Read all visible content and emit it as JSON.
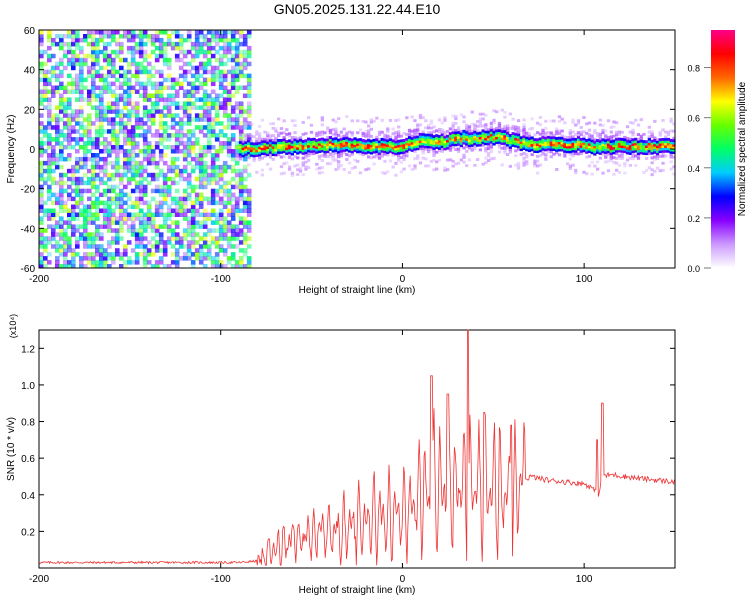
{
  "title": "GN05.2025.131.22.44.E10",
  "chart_data": [
    {
      "type": "heatmap",
      "name": "spectrogram",
      "xlabel": "Height of straight line (km)",
      "ylabel": "Frequency (Hz)",
      "xlim": [
        -200,
        150
      ],
      "ylim": [
        -60,
        60
      ],
      "xticks": [
        -200,
        -100,
        0,
        100
      ],
      "yticks": [
        -60,
        -40,
        -20,
        0,
        20,
        40,
        60
      ],
      "colorbar": {
        "label": "Normalized spectral amplitude",
        "range": [
          0,
          0.95
        ],
        "ticks": [
          0.0,
          0.2,
          0.4,
          0.6,
          0.8
        ],
        "colormap": [
          "#ffffff",
          "#cc99ff",
          "#8800ff",
          "#0000ff",
          "#00ccff",
          "#00ff66",
          "#66ff00",
          "#ffff00",
          "#ff6600",
          "#ff0000",
          "#ff0088"
        ]
      },
      "noise_region": {
        "x": [
          -200,
          -85
        ],
        "y": [
          -60,
          60
        ],
        "amplitude": "0.05-0.25"
      },
      "signal_band": {
        "x": [
          -90,
          150
        ],
        "center_hz": [
          [
            -90,
            0
          ],
          [
            -80,
            0
          ],
          [
            -60,
            1
          ],
          [
            -40,
            2
          ],
          [
            -20,
            1
          ],
          [
            0,
            1
          ],
          [
            10,
            4
          ],
          [
            20,
            3
          ],
          [
            30,
            5
          ],
          [
            40,
            5
          ],
          [
            50,
            6
          ],
          [
            60,
            4
          ],
          [
            70,
            2
          ],
          [
            90,
            2
          ],
          [
            100,
            2
          ],
          [
            104,
            0
          ],
          [
            110,
            1
          ],
          [
            150,
            1
          ]
        ],
        "half_width_hz": 3,
        "peak_amplitude": 0.9
      },
      "grid": false
    },
    {
      "type": "line",
      "name": "snr",
      "xlabel": "Height of straight line (km)",
      "ylabel": "SNR (10 * v/v)",
      "y_multiplier": "(x10⁴)",
      "xlim": [
        -200,
        150
      ],
      "ylim": [
        0,
        1.3
      ],
      "xticks": [
        -200,
        -100,
        0,
        100
      ],
      "yticks": [
        0.2,
        0.4,
        0.6,
        0.8,
        1.0,
        1.2
      ],
      "color": "#ee3333",
      "envelope": {
        "x": [
          -200,
          -120,
          -90,
          -78,
          -70,
          -50,
          -30,
          -10,
          0,
          10,
          20,
          30,
          40,
          50,
          60,
          70,
          80,
          90,
          100,
          104,
          108,
          110,
          115,
          130,
          150
        ],
        "y": [
          0.03,
          0.03,
          0.03,
          0.04,
          0.12,
          0.18,
          0.22,
          0.28,
          0.3,
          0.38,
          0.42,
          0.45,
          0.45,
          0.42,
          0.4,
          0.5,
          0.48,
          0.47,
          0.46,
          0.44,
          0.4,
          0.5,
          0.51,
          0.49,
          0.47
        ]
      },
      "peaks": [
        {
          "x": 16,
          "y": 1.05
        },
        {
          "x": 25,
          "y": 0.95
        },
        {
          "x": 36,
          "y": 1.32
        },
        {
          "x": 45,
          "y": 0.85
        },
        {
          "x": 60,
          "y": 0.78
        },
        {
          "x": 107,
          "y": 0.7
        },
        {
          "x": 110,
          "y": 0.9
        }
      ],
      "grid": false
    }
  ]
}
